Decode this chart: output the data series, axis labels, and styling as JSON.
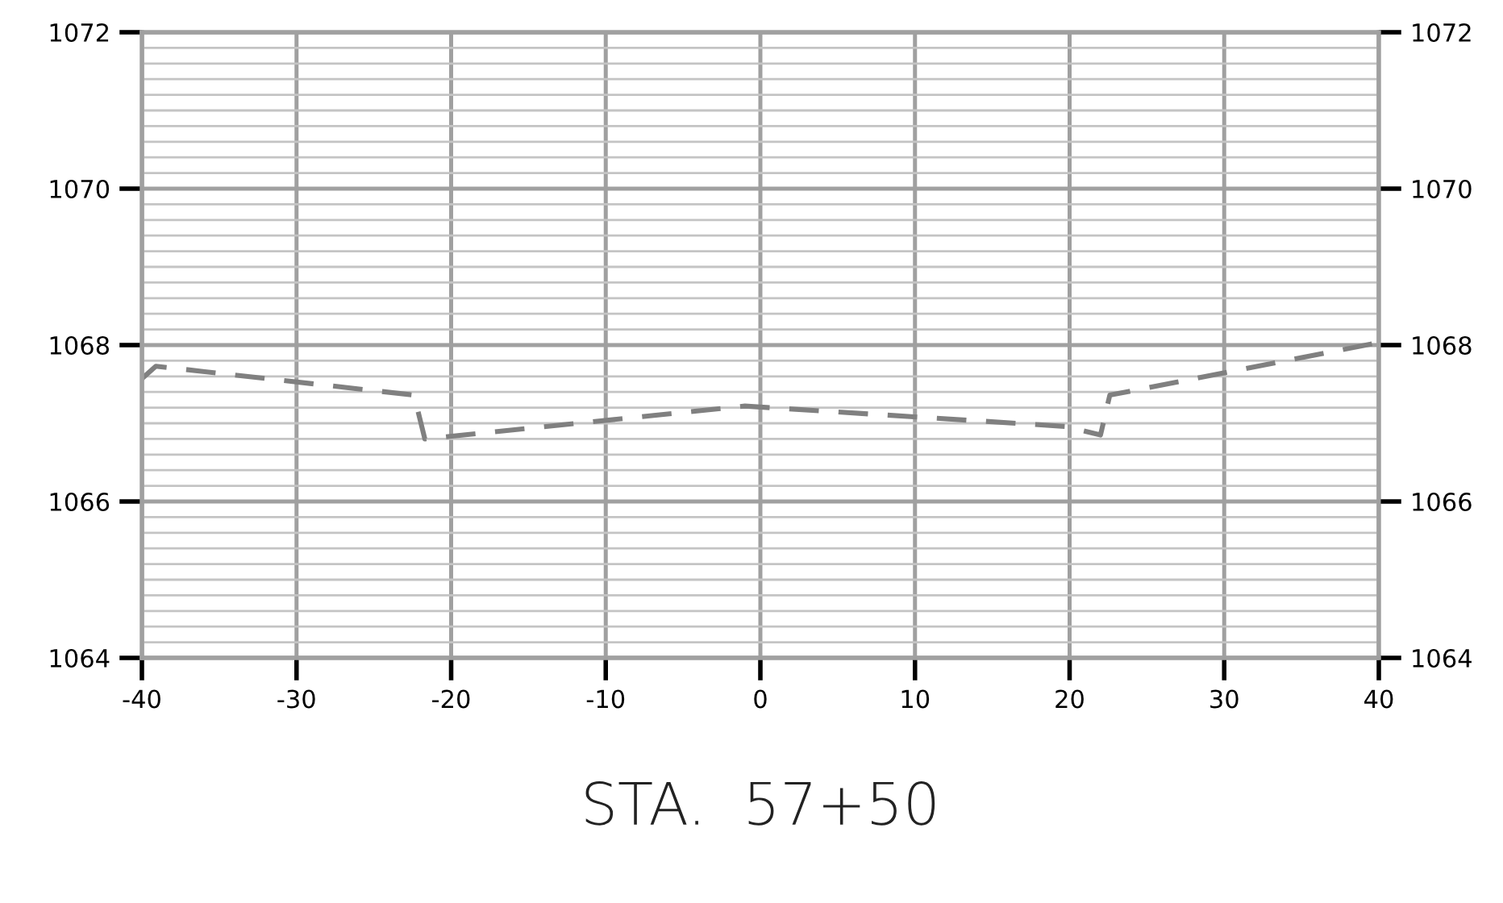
{
  "chart_data": {
    "type": "line",
    "xlabel": "STA.  57+50",
    "x": [
      -40,
      -39.1,
      -22.4,
      -21.7,
      -1.0,
      19.7,
      22.0,
      22.6,
      39.7
    ],
    "series": [
      {
        "color": "#808080",
        "values": [
          1067.57,
          1067.73,
          1067.36,
          1066.8,
          1067.22,
          1066.96,
          1066.85,
          1067.36,
          1068.02
        ]
      }
    ],
    "xlim": [
      -40,
      40
    ],
    "xticks": [
      -40,
      -30,
      -20,
      -10,
      0,
      10,
      20,
      30,
      40
    ],
    "ylim": [
      1064,
      1072
    ],
    "yticks": [
      1064,
      1066,
      1068,
      1070,
      1072
    ],
    "y2lim": [
      1064,
      1072
    ],
    "y2ticks": [
      1064,
      1066,
      1068,
      1070,
      1072
    ],
    "grid": true,
    "line_style": "dashed",
    "marker": "none",
    "legend": false
  }
}
